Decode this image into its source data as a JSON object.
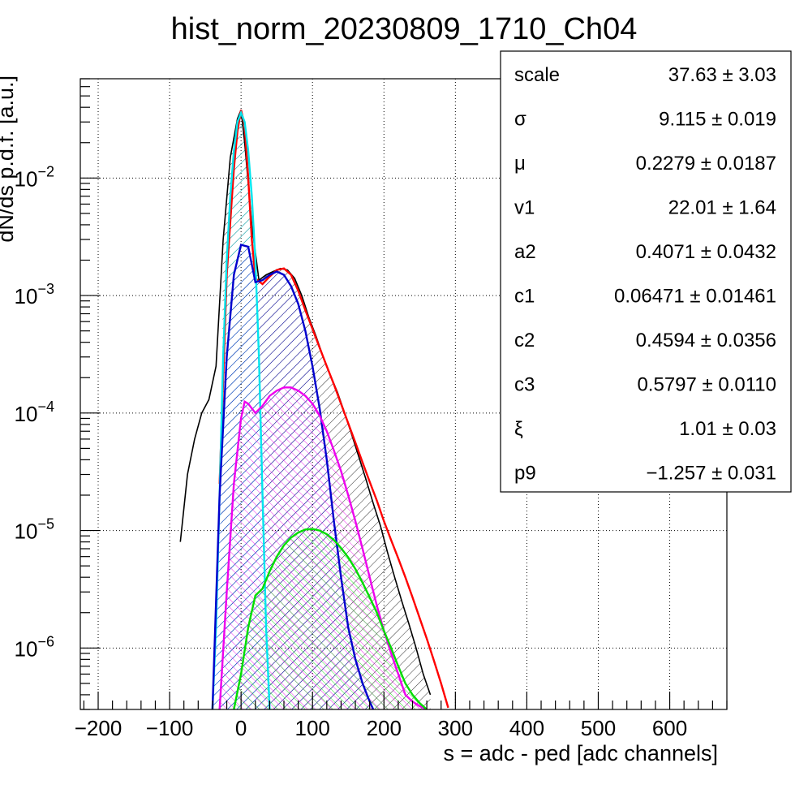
{
  "chart_data": {
    "type": "line",
    "title": "hist_norm_20230809_1710_Ch04",
    "xlabel": "s = adc - ped [adc channels]",
    "ylabel": "dN/ds p.d.f. [a.u.]",
    "xlim": [
      -225,
      680
    ],
    "ylim": [
      3e-07,
      0.07
    ],
    "log_y": true,
    "grid": true,
    "x_ticks": [
      {
        "value": -200,
        "label": "−200"
      },
      {
        "value": -100,
        "label": "−100"
      },
      {
        "value": 0,
        "label": "0"
      },
      {
        "value": 100,
        "label": "100"
      },
      {
        "value": 200,
        "label": "200"
      },
      {
        "value": 300,
        "label": "300"
      },
      {
        "value": 400,
        "label": "400"
      },
      {
        "value": 500,
        "label": "500"
      },
      {
        "value": 600,
        "label": "600"
      }
    ],
    "y_ticks": [
      {
        "value": 1e-06,
        "base": "10",
        "exp": "−6"
      },
      {
        "value": 1e-05,
        "base": "10",
        "exp": "−5"
      },
      {
        "value": 0.0001,
        "base": "10",
        "exp": "−4"
      },
      {
        "value": 0.001,
        "base": "10",
        "exp": "−3"
      },
      {
        "value": 0.01,
        "base": "10",
        "exp": "−2"
      }
    ],
    "series": [
      {
        "color": "#000000",
        "style": "histogram",
        "x": [
          -85,
          -75,
          -65,
          -55,
          -45,
          -35,
          -25,
          -15,
          -5,
          0,
          5,
          15,
          25,
          35,
          45,
          55,
          65,
          75,
          85,
          95,
          105,
          115,
          125,
          135,
          145,
          155,
          165,
          175,
          185,
          195,
          205,
          215,
          225,
          235,
          245,
          255,
          265
        ],
        "y": [
          8e-06,
          3e-05,
          6e-05,
          0.0001,
          0.00013,
          0.00025,
          0.003,
          0.015,
          0.032,
          0.038,
          0.02,
          0.004,
          0.00135,
          0.0015,
          0.0016,
          0.0017,
          0.00165,
          0.0014,
          0.001,
          0.00065,
          0.00045,
          0.0003,
          0.00021,
          0.00015,
          0.0001,
          6.5e-05,
          4.2e-05,
          2.7e-05,
          1.7e-05,
          1.1e-05,
          6.5e-06,
          4e-06,
          2.5e-06,
          1.6e-06,
          1e-06,
          6e-07,
          4e-07
        ]
      },
      {
        "color": "#ff0000",
        "style": "line",
        "x": [
          -30,
          -20,
          -10,
          -5,
          0,
          5,
          10,
          15,
          20,
          30,
          40,
          50,
          60,
          70,
          80,
          90,
          100,
          110,
          120,
          130,
          140,
          150,
          160,
          170,
          180,
          190,
          200,
          210,
          220,
          230,
          240,
          250,
          260,
          270,
          280,
          290
        ],
        "y": [
          2.5e-05,
          0.0015,
          0.012,
          0.025,
          0.038,
          0.028,
          0.01,
          0.003,
          0.0014,
          0.00125,
          0.00145,
          0.00165,
          0.0017,
          0.0015,
          0.0011,
          0.00075,
          0.00052,
          0.00036,
          0.00025,
          0.000175,
          0.00012,
          8.2e-05,
          5.6e-05,
          3.8e-05,
          2.6e-05,
          1.8e-05,
          1.2e-05,
          8.3e-06,
          5.8e-06,
          4e-06,
          2.7e-06,
          1.8e-06,
          1.2e-06,
          7.8e-07,
          5e-07,
          3.1e-07
        ]
      },
      {
        "color": "#00e5ee",
        "style": "filled",
        "x": [
          -40,
          -35,
          -30,
          -25,
          -20,
          -15,
          -10,
          -5,
          0,
          5,
          10,
          15,
          20,
          25,
          30,
          35,
          40
        ],
        "y": [
          3e-07,
          1.5e-06,
          2e-05,
          0.0003,
          0.002,
          0.007,
          0.017,
          0.03,
          0.036,
          0.03,
          0.017,
          0.007,
          0.002,
          0.0003,
          2e-05,
          1.5e-06,
          3e-07
        ]
      },
      {
        "color": "#0000cd",
        "style": "filled",
        "x": [
          -40,
          -30,
          -20,
          -10,
          0,
          10,
          20,
          30,
          40,
          50,
          60,
          70,
          80,
          90,
          100,
          110,
          120,
          130,
          140,
          150,
          160,
          170,
          180,
          185
        ],
        "y": [
          3e-07,
          2e-05,
          0.0003,
          0.0015,
          0.0027,
          0.0026,
          0.0013,
          0.00135,
          0.0015,
          0.0016,
          0.0015,
          0.0012,
          0.00085,
          0.0005,
          0.00025,
          0.00011,
          4e-05,
          1.2e-05,
          4e-06,
          1.5e-06,
          8e-07,
          5e-07,
          3.5e-07,
          3e-07
        ]
      },
      {
        "color": "#ee00ee",
        "style": "filled",
        "x": [
          -30,
          -20,
          -10,
          0,
          5,
          10,
          20,
          30,
          40,
          50,
          60,
          70,
          80,
          90,
          100,
          110,
          120,
          130,
          140,
          150,
          160,
          170,
          180,
          190,
          200,
          210,
          220,
          230,
          240,
          250,
          260
        ],
        "y": [
          3e-07,
          3e-06,
          2.5e-05,
          9e-05,
          0.000125,
          0.00012,
          0.0001,
          0.000115,
          0.00014,
          0.000155,
          0.000165,
          0.000165,
          0.000155,
          0.00014,
          0.00012,
          9.5e-05,
          7e-05,
          4.8e-05,
          3.2e-05,
          2e-05,
          1.2e-05,
          7e-06,
          4e-06,
          2.3e-06,
          1.4e-06,
          9e-07,
          6e-07,
          4e-07,
          3.5e-07,
          3.2e-07,
          3e-07
        ]
      },
      {
        "color": "#00dd00",
        "style": "filled",
        "x": [
          -10,
          0,
          10,
          20,
          30,
          40,
          50,
          60,
          70,
          80,
          90,
          100,
          110,
          120,
          130,
          140,
          150,
          160,
          170,
          180,
          190,
          200,
          210,
          220,
          230,
          240,
          250,
          260
        ],
        "y": [
          3e-07,
          6e-07,
          1.5e-06,
          2.8e-06,
          3.2e-06,
          4.5e-06,
          6e-06,
          7.5e-06,
          8.7e-06,
          9.6e-06,
          1.02e-05,
          1.03e-05,
          1e-05,
          9.3e-06,
          8.3e-06,
          7.1e-06,
          5.9e-06,
          4.7e-06,
          3.6e-06,
          2.7e-06,
          2e-06,
          1.4e-06,
          1e-06,
          7e-07,
          5e-07,
          4e-07,
          3.4e-07,
          3e-07
        ]
      }
    ],
    "stats": [
      {
        "name": "scale",
        "value": "37.63 ± 3.03"
      },
      {
        "name": "σ",
        "value": "9.115 ± 0.019"
      },
      {
        "name": "μ",
        "value": "0.2279 ± 0.0187"
      },
      {
        "name": "v1",
        "value": "22.01 ± 1.64"
      },
      {
        "name": "a2",
        "value": "0.4071 ± 0.0432"
      },
      {
        "name": "c1",
        "value": "0.06471 ± 0.01461"
      },
      {
        "name": "c2",
        "value": "0.4594 ± 0.0356"
      },
      {
        "name": "c3",
        "value": "0.5797 ± 0.0110"
      },
      {
        "name": "ξ",
        "value": "1.01 ± 0.03"
      },
      {
        "name": "p9",
        "value": "−1.257 ± 0.031"
      }
    ]
  }
}
